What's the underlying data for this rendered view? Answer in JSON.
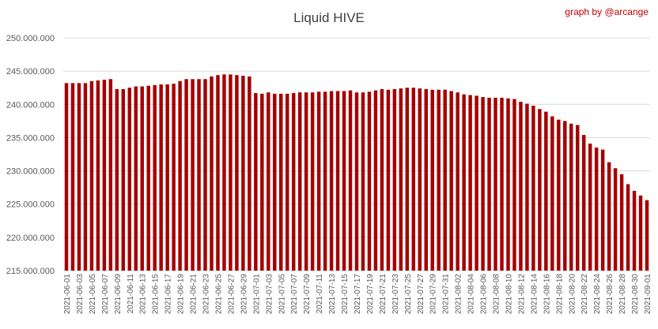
{
  "credit": "graph by @arcange",
  "chart_data": {
    "type": "bar",
    "title": "Liquid HIVE",
    "xlabel": "",
    "ylabel": "",
    "ylim": [
      215000000,
      250000000
    ],
    "yticks": [
      215000000,
      220000000,
      225000000,
      230000000,
      235000000,
      240000000,
      245000000,
      250000000
    ],
    "ytick_labels": [
      "215.000.000",
      "220.000.000",
      "225.000.000",
      "230.000.000",
      "235.000.000",
      "240.000.000",
      "245.000.000",
      "250.000.000"
    ],
    "grid": true,
    "legend": "none",
    "bar_color": "#a50000",
    "categories": [
      "2021-06-01",
      "2021-06-02",
      "2021-06-03",
      "2021-06-04",
      "2021-06-05",
      "2021-06-06",
      "2021-06-07",
      "2021-06-08",
      "2021-06-09",
      "2021-06-10",
      "2021-06-11",
      "2021-06-12",
      "2021-06-13",
      "2021-06-14",
      "2021-06-15",
      "2021-06-16",
      "2021-06-17",
      "2021-06-18",
      "2021-06-19",
      "2021-06-20",
      "2021-06-21",
      "2021-06-22",
      "2021-06-23",
      "2021-06-24",
      "2021-06-25",
      "2021-06-26",
      "2021-06-27",
      "2021-06-28",
      "2021-06-29",
      "2021-06-30",
      "2021-07-01",
      "2021-07-02",
      "2021-07-03",
      "2021-07-04",
      "2021-07-05",
      "2021-07-06",
      "2021-07-07",
      "2021-07-08",
      "2021-07-09",
      "2021-07-10",
      "2021-07-11",
      "2021-07-12",
      "2021-07-13",
      "2021-07-14",
      "2021-07-15",
      "2021-07-16",
      "2021-07-17",
      "2021-07-18",
      "2021-07-19",
      "2021-07-20",
      "2021-07-21",
      "2021-07-22",
      "2021-07-23",
      "2021-07-24",
      "2021-07-25",
      "2021-07-26",
      "2021-07-27",
      "2021-07-28",
      "2021-07-29",
      "2021-07-30",
      "2021-07-31",
      "2021-08-01",
      "2021-08-02",
      "2021-08-03",
      "2021-08-04",
      "2021-08-05",
      "2021-08-06",
      "2021-08-07",
      "2021-08-08",
      "2021-08-09",
      "2021-08-10",
      "2021-08-11",
      "2021-08-12",
      "2021-08-13",
      "2021-08-14",
      "2021-08-15",
      "2021-08-16",
      "2021-08-17",
      "2021-08-18",
      "2021-08-19",
      "2021-08-20",
      "2021-08-21",
      "2021-08-22",
      "2021-08-23",
      "2021-08-24",
      "2021-08-25",
      "2021-08-26",
      "2021-08-27",
      "2021-08-28",
      "2021-08-29",
      "2021-08-30",
      "2021-08-31",
      "2021-09-01"
    ],
    "tick_labels_shown": [
      "2021-06-01",
      "2021-06-03",
      "2021-06-05",
      "2021-06-07",
      "2021-06-09",
      "2021-06-11",
      "2021-06-13",
      "2021-06-15",
      "2021-06-17",
      "2021-06-19",
      "2021-06-21",
      "2021-06-23",
      "2021-06-25",
      "2021-06-27",
      "2021-06-29",
      "2021-07-01",
      "2021-07-03",
      "2021-07-05",
      "2021-07-07",
      "2021-07-09",
      "2021-07-11",
      "2021-07-13",
      "2021-07-15",
      "2021-07-17",
      "2021-07-19",
      "2021-07-21",
      "2021-07-23",
      "2021-07-25",
      "2021-07-27",
      "2021-07-29",
      "2021-07-31",
      "2021-08-02",
      "2021-08-04",
      "2021-08-06",
      "2021-08-08",
      "2021-08-10",
      "2021-08-12",
      "2021-08-14",
      "2021-08-16",
      "2021-08-18",
      "2021-08-20",
      "2021-08-22",
      "2021-08-24",
      "2021-08-26",
      "2021-08-28",
      "2021-08-30",
      "2021-09-01"
    ],
    "values": [
      243200000,
      243200000,
      243200000,
      243200000,
      243500000,
      243600000,
      243700000,
      243800000,
      242300000,
      242300000,
      242500000,
      242700000,
      242700000,
      242800000,
      242900000,
      243000000,
      243000000,
      243100000,
      243500000,
      243800000,
      243800000,
      243800000,
      243800000,
      244200000,
      244400000,
      244500000,
      244500000,
      244400000,
      244300000,
      244200000,
      241700000,
      241600000,
      241800000,
      241600000,
      241600000,
      241600000,
      241700000,
      241800000,
      241800000,
      241800000,
      241900000,
      241900000,
      242000000,
      242000000,
      242000000,
      242100000,
      241800000,
      241800000,
      241900000,
      242100000,
      242300000,
      242200000,
      242300000,
      242400000,
      242500000,
      242500000,
      242400000,
      242300000,
      242200000,
      242200000,
      242200000,
      242000000,
      241800000,
      241500000,
      241400000,
      241300000,
      241100000,
      241000000,
      241000000,
      241000000,
      240900000,
      240800000,
      240400000,
      240100000,
      239800000,
      239300000,
      238900000,
      238200000,
      237700000,
      237500000,
      237100000,
      236900000,
      235400000,
      234100000,
      233500000,
      233200000,
      231300000,
      230400000,
      229500000,
      228000000,
      227000000,
      226300000,
      225600000
    ]
  }
}
